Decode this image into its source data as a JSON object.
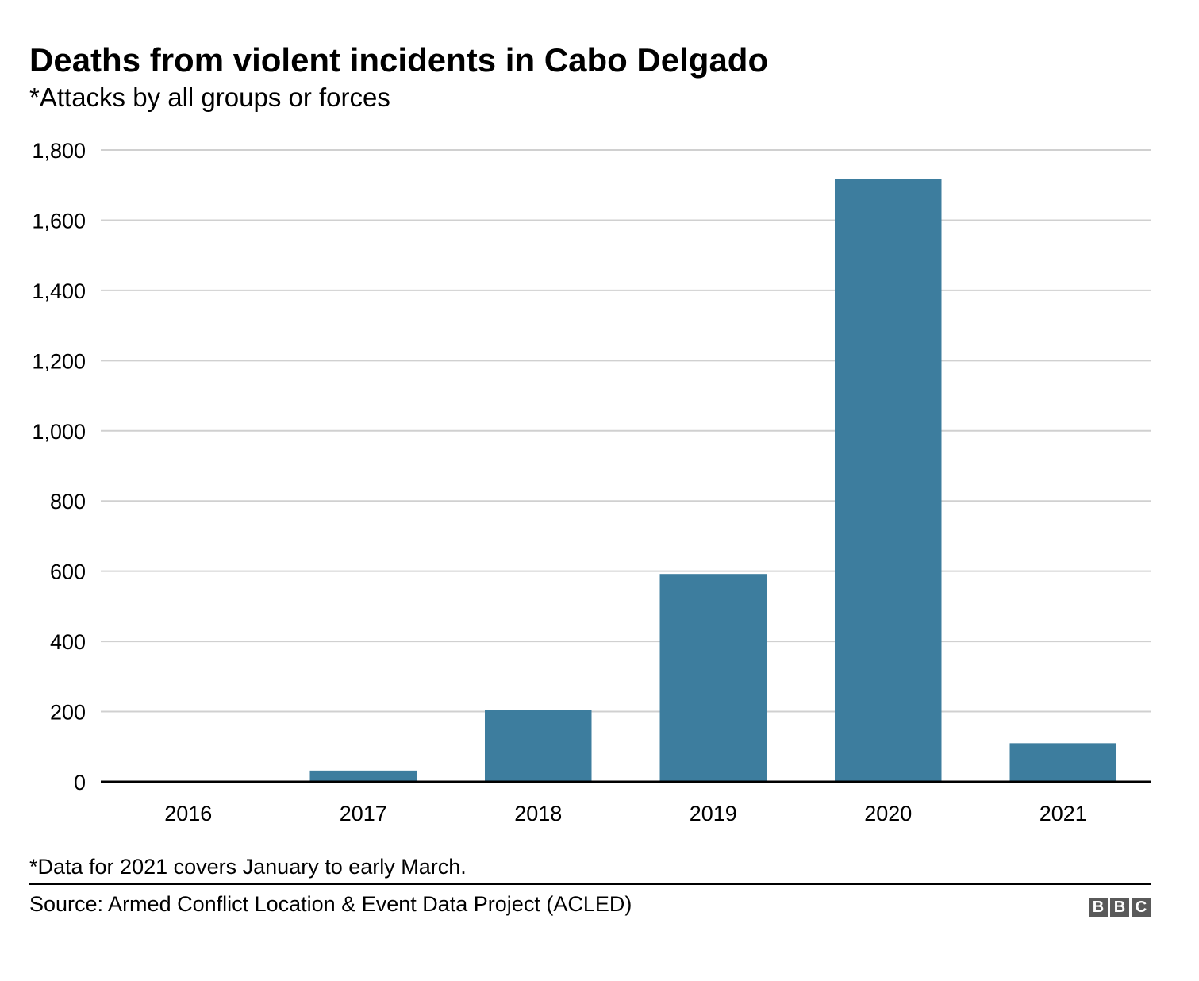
{
  "title": "Deaths from violent incidents in Cabo Delgado",
  "subtitle": "*Attacks by all groups or forces",
  "note": "*Data for 2021 covers January to early March.",
  "source": "Source: Armed Conflict Location & Event Data Project (ACLED)",
  "logo": [
    "B",
    "B",
    "C"
  ],
  "colors": {
    "bar": "#3d7d9e",
    "grid": "#d0d0d0",
    "baseline": "#000000"
  },
  "chart_data": {
    "type": "bar",
    "categories": [
      "2016",
      "2017",
      "2018",
      "2019",
      "2020",
      "2021"
    ],
    "values": [
      0,
      32,
      205,
      592,
      1718,
      110
    ],
    "ylim": [
      0,
      1800
    ],
    "yticks": [
      0,
      200,
      400,
      600,
      800,
      1000,
      1200,
      1400,
      1600,
      1800
    ],
    "ytick_labels": [
      "0",
      "200",
      "400",
      "600",
      "800",
      "1,000",
      "1,200",
      "1,400",
      "1,600",
      "1,800"
    ],
    "grid": true,
    "legend": "none"
  }
}
